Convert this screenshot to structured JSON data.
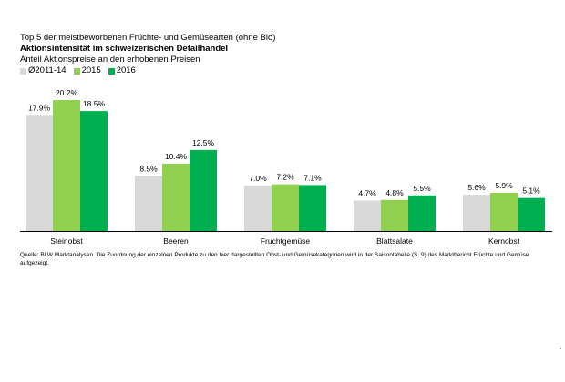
{
  "chart_data": {
    "type": "bar",
    "title": "Top 5 der meistbeworbenen Früchte- und Gemüsearten (ohne Bio)",
    "subtitle": "Aktionsintensität im schweizerischen Detailhandel",
    "ylabel": "Anteil Aktionspreise an den erhobenen Preisen",
    "xlabel": "",
    "categories": [
      "Steinobst",
      "Beeren",
      "Fruchtgemüse",
      "Blattsalate",
      "Kernobst"
    ],
    "series": [
      {
        "name": "Ø2011-14",
        "values": [
          17.9,
          8.5,
          7.0,
          4.7,
          5.6
        ],
        "labels": [
          "17.9%",
          "8.5%",
          "7.0%",
          "4.7%",
          "5.6%"
        ],
        "color": "#d9d9d9"
      },
      {
        "name": "2015",
        "values": [
          20.2,
          10.4,
          7.2,
          4.8,
          5.9
        ],
        "labels": [
          "20.2%",
          "10.4%",
          "7.2%",
          "4.8%",
          "5.9%"
        ],
        "color": "#92d050"
      },
      {
        "name": "2016",
        "values": [
          18.5,
          12.5,
          7.1,
          5.5,
          5.1
        ],
        "labels": [
          "18.5%",
          "12.5%",
          "7.1%",
          "5.5%",
          "5.1%"
        ],
        "color": "#00b050"
      }
    ],
    "ylim": [
      0,
      20.2
    ],
    "grid": false,
    "legend": "top-left"
  },
  "source": "Quelle: BLW Marktanalysen. Die Zuordnung der einzelnen Produkte zu den hier dargestellten Obst- und Gemüsekategorien wird in der Saisontabelle (S. 9) des Marktbericht Früchte und Gemüse aufgezeigt.",
  "dot": "."
}
